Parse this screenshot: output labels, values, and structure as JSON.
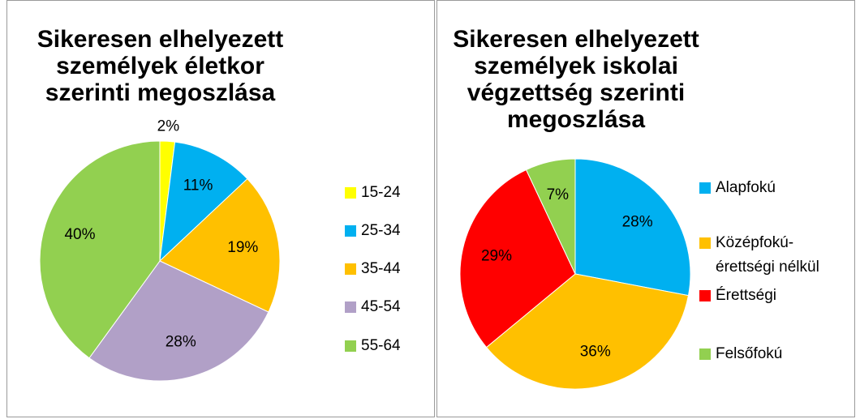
{
  "chart_data": [
    {
      "type": "pie",
      "title": "Sikeresen elhelyezett személyek életkor szerinti megoszlása",
      "categories": [
        "15-24",
        "25-34",
        "35-44",
        "45-54",
        "55-64"
      ],
      "values": [
        2,
        11,
        19,
        28,
        40
      ],
      "value_labels": [
        "2%",
        "11%",
        "19%",
        "28%",
        "40%"
      ],
      "colors": [
        "#ffff00",
        "#00b0f0",
        "#ffc000",
        "#b1a0c7",
        "#92d050"
      ],
      "legend": "right"
    },
    {
      "type": "pie",
      "title": "Sikeresen elhelyezett személyek iskolai végzettség szerinti megoszlása",
      "categories": [
        "Alapfokú",
        "Középfokú-érettségi nélkül",
        "Érettségi",
        "Felsőfokú"
      ],
      "values": [
        28,
        36,
        29,
        7
      ],
      "value_labels": [
        "28%",
        "36%",
        "29%",
        "7%"
      ],
      "colors": [
        "#00b0f0",
        "#ffc000",
        "#ff0000",
        "#92d050"
      ],
      "legend": "right"
    }
  ]
}
